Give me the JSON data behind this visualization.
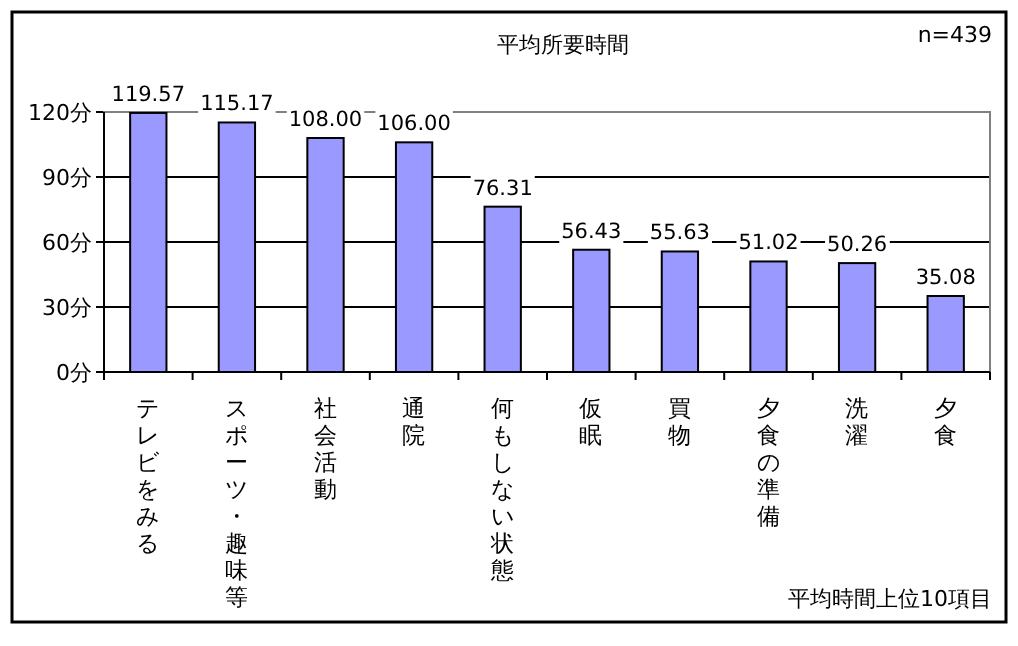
{
  "chart_data": {
    "type": "bar",
    "title": "平均所要時間",
    "categories": [
      "テレビをみる",
      "スポーツ・趣味等",
      "社会活動",
      "通院",
      "何もしない状態",
      "仮眠",
      "買物",
      "夕食の準備",
      "洗濯",
      "夕食"
    ],
    "values": [
      119.57,
      115.17,
      108.0,
      106.0,
      76.31,
      56.43,
      55.63,
      51.02,
      50.26,
      35.08
    ],
    "value_labels": [
      "119.57",
      "115.17",
      "108.00",
      "106.00",
      "76.31",
      "56.43",
      "55.63",
      "51.02",
      "50.26",
      "35.08"
    ],
    "color": "#9999ff",
    "ylim": [
      0,
      120
    ],
    "yticks": [
      {
        "value": 0,
        "label": "0分"
      },
      {
        "value": 30,
        "label": "30分"
      },
      {
        "value": 60,
        "label": "60分"
      },
      {
        "value": 90,
        "label": "90分"
      },
      {
        "value": 120,
        "label": "120分"
      }
    ],
    "grid": "y",
    "annotations": [
      "n=439",
      "平均時間上位10項目"
    ]
  }
}
